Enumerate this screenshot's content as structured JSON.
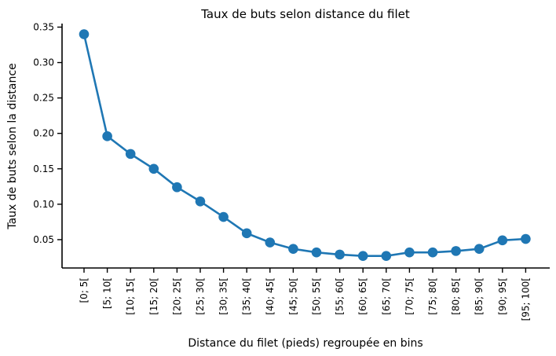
{
  "chart_data": {
    "type": "line",
    "title": "Taux de buts selon distance du filet",
    "xlabel": "Distance du filet (pieds) regroupée en bins",
    "ylabel": "Taux de buts selon la distance",
    "categories": [
      "[0; 5[",
      "[5; 10[",
      "[10; 15[",
      "[15; 20[",
      "[20; 25[",
      "[25; 30[",
      "[30; 35[",
      "[35; 40[",
      "[40; 45[",
      "[45; 50[",
      "[50; 55[",
      "[55; 60[",
      "[60; 65[",
      "[65; 70[",
      "[70; 75[",
      "[75; 80[",
      "[80; 85[",
      "[85; 90[",
      "[90; 95[",
      "[95; 100["
    ],
    "series": [
      {
        "values": [
          0.34,
          0.196,
          0.171,
          0.15,
          0.124,
          0.104,
          0.082,
          0.059,
          0.046,
          0.037,
          0.032,
          0.029,
          0.027,
          0.027,
          0.032,
          0.032,
          0.034,
          0.037,
          0.049,
          0.051
        ],
        "color": "#1f77b4"
      }
    ],
    "ylim": [
      0.01,
      0.355
    ],
    "yticks": [
      "0.05",
      "0.10",
      "0.15",
      "0.20",
      "0.25",
      "0.30",
      "0.35"
    ],
    "grid": false,
    "legend": "none"
  }
}
